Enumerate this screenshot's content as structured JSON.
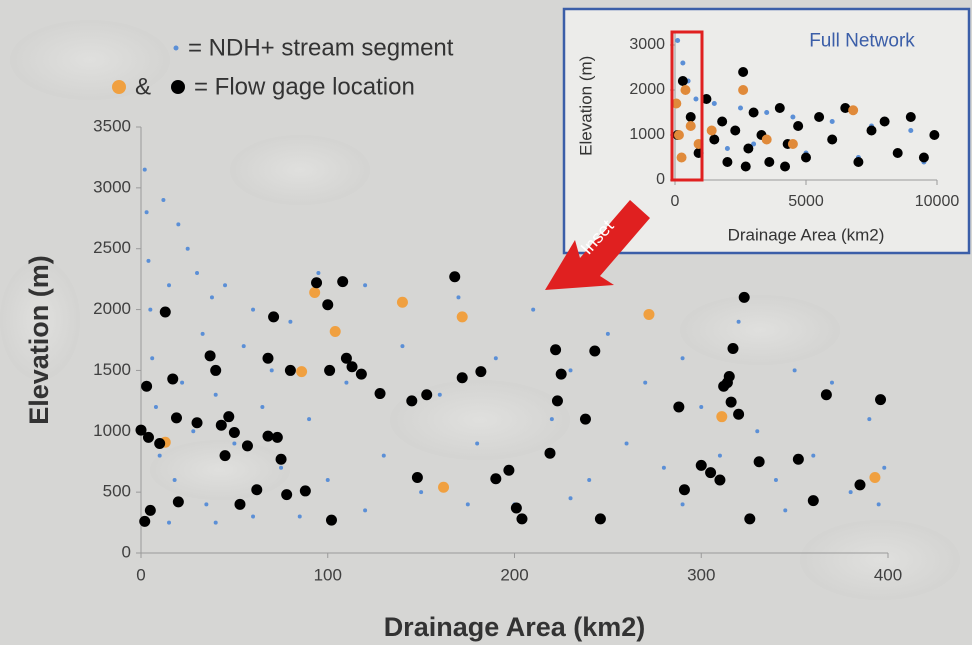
{
  "chart_data": [
    {
      "type": "scatter",
      "xlabel": "Drainage Area (km2)",
      "ylabel": "Elevation (m)",
      "xlim": [
        0,
        400
      ],
      "ylim": [
        0,
        3500
      ],
      "xticks": [
        0,
        100,
        200,
        300,
        400
      ],
      "yticks": [
        0,
        500,
        1000,
        1500,
        2000,
        2500,
        3000,
        3500
      ],
      "annotation": "Inset",
      "series": [
        {
          "name": "= NDH+ stream segment",
          "color": "#5b8fd6",
          "x": [
            2,
            3,
            4,
            5,
            6,
            8,
            10,
            12,
            15,
            18,
            20,
            22,
            25,
            28,
            30,
            33,
            35,
            38,
            40,
            45,
            50,
            55,
            60,
            65,
            70,
            75,
            80,
            90,
            95,
            100,
            110,
            120,
            130,
            140,
            150,
            160,
            170,
            180,
            190,
            200,
            210,
            220,
            230,
            240,
            250,
            260,
            270,
            280,
            290,
            300,
            310,
            320,
            330,
            340,
            350,
            360,
            370,
            380,
            390,
            398,
            15,
            40,
            60,
            85,
            120,
            175,
            230,
            290,
            345,
            395
          ],
          "values": [
            3150,
            2800,
            2400,
            2000,
            1600,
            1200,
            800,
            2900,
            2200,
            600,
            2700,
            1400,
            2500,
            1000,
            2300,
            1800,
            400,
            2100,
            1300,
            2200,
            900,
            1700,
            2000,
            1200,
            1500,
            700,
            1900,
            1100,
            2300,
            600,
            1400,
            2200,
            800,
            1700,
            500,
            1300,
            2100,
            900,
            1600,
            400,
            2000,
            1100,
            1500,
            600,
            1800,
            900,
            1400,
            700,
            1600,
            1200,
            800,
            1900,
            1000,
            600,
            1500,
            800,
            1400,
            500,
            1100,
            700,
            250,
            250,
            300,
            300,
            350,
            400,
            450,
            400,
            350,
            400
          ]
        },
        {
          "name": "&",
          "color": "#f0a040",
          "x": [
            13,
            93,
            86,
            104,
            140,
            162,
            172,
            272,
            311,
            393
          ],
          "values": [
            910,
            2140,
            1490,
            1820,
            2060,
            540,
            1940,
            1960,
            1120,
            620
          ]
        },
        {
          "name": "= Flow gage location",
          "color": "#000000",
          "x": [
            0,
            3,
            4,
            5,
            2,
            10,
            13,
            17,
            19,
            20,
            30,
            37,
            40,
            43,
            45,
            47,
            50,
            53,
            57,
            62,
            68,
            68,
            71,
            73,
            75,
            78,
            80,
            88,
            94,
            100,
            101,
            102,
            108,
            110,
            113,
            118,
            128,
            145,
            148,
            153,
            168,
            172,
            182,
            190,
            197,
            201,
            204,
            219,
            222,
            223,
            225,
            238,
            243,
            246,
            288,
            291,
            300,
            305,
            310,
            312,
            314,
            315,
            316,
            317,
            320,
            323,
            326,
            331,
            352,
            360,
            367,
            385,
            396
          ],
          "values": [
            1010,
            1370,
            950,
            350,
            260,
            900,
            1980,
            1430,
            1110,
            420,
            1070,
            1620,
            1500,
            1050,
            800,
            1120,
            990,
            400,
            880,
            520,
            960,
            1600,
            1940,
            950,
            770,
            480,
            1500,
            510,
            2220,
            2040,
            1500,
            270,
            2230,
            1600,
            1530,
            1470,
            1310,
            1250,
            620,
            1300,
            2270,
            1440,
            1490,
            610,
            680,
            370,
            280,
            820,
            1670,
            1250,
            1470,
            1100,
            1660,
            280,
            1200,
            520,
            720,
            660,
            600,
            1370,
            1400,
            1450,
            1240,
            1680,
            1140,
            2100,
            280,
            750,
            770,
            430,
            1300,
            560,
            1260
          ]
        }
      ]
    },
    {
      "type": "scatter",
      "title": "Full Network",
      "xlabel": "Drainage Area (km2)",
      "ylabel": "Elevation (m)",
      "xlim": [
        0,
        10000
      ],
      "ylim": [
        0,
        3300
      ],
      "xticks": [
        0,
        5000,
        10000
      ],
      "yticks": [
        0,
        1000,
        2000,
        3000
      ],
      "series": [
        {
          "color": "#5b8fd6",
          "x": [
            100,
            300,
            500,
            800,
            1500,
            2500,
            3500,
            4500,
            6000,
            7500,
            9000,
            200,
            1000,
            2000,
            3000,
            5000,
            7000,
            9500
          ],
          "values": [
            3100,
            2600,
            2200,
            1800,
            1700,
            1600,
            1500,
            1400,
            1300,
            1200,
            1100,
            500,
            600,
            700,
            800,
            600,
            500,
            400
          ]
        },
        {
          "color": "#000000",
          "x": [
            100,
            300,
            600,
            900,
            1200,
            1500,
            1800,
            2000,
            2300,
            2600,
            2800,
            3000,
            3300,
            3600,
            4000,
            4300,
            4700,
            5000,
            5500,
            6000,
            6500,
            7000,
            7500,
            8000,
            8500,
            9000,
            9500,
            9900,
            2700,
            4200
          ],
          "values": [
            1000,
            2200,
            1400,
            600,
            1800,
            900,
            1300,
            400,
            1100,
            2400,
            700,
            1500,
            1000,
            400,
            1600,
            800,
            1200,
            500,
            1400,
            900,
            1600,
            400,
            1100,
            1300,
            600,
            1400,
            500,
            1000,
            300,
            300
          ]
        },
        {
          "color": "#e08a3a",
          "x": [
            50,
            150,
            250,
            400,
            600,
            900,
            1400,
            2600,
            3500,
            4500,
            6800
          ],
          "values": [
            1700,
            1000,
            500,
            2000,
            1200,
            800,
            1100,
            2000,
            900,
            800,
            1550
          ]
        }
      ]
    }
  ]
}
